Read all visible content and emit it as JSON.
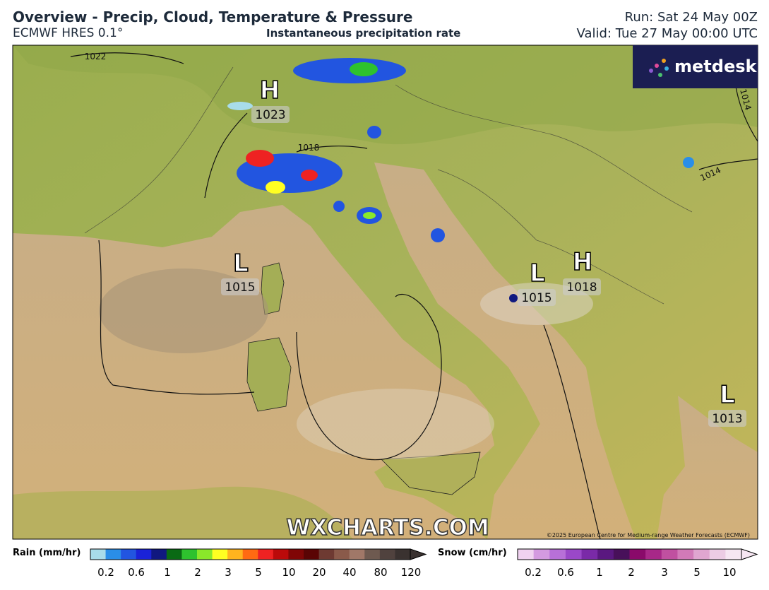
{
  "header": {
    "title": "Overview - Precip, Cloud, Temperature & Pressure",
    "model": "ECMWF HRES 0.1°",
    "subtitle": "Instantaneous precipitation rate",
    "run": "Run: Sat 24 May 00Z",
    "valid": "Valid: Tue 27 May 00:00 UTC"
  },
  "logo": "metdesk",
  "watermark": "WXCHARTS.COM",
  "copyright": "©2025 European Centre for Medium-range Weather Forecasts (ECMWF)",
  "pressure_systems": [
    {
      "symbol": "H",
      "value": 1023
    },
    {
      "symbol": "L",
      "value": 1015
    },
    {
      "symbol": "L",
      "value": 1015
    },
    {
      "symbol": "H",
      "value": 1018
    },
    {
      "symbol": "L",
      "value": 1013
    }
  ],
  "isobar_labels": [
    1022,
    1018,
    1014,
    1014
  ],
  "rain_legend": {
    "title": "Rain (mm/hr)",
    "ticks": [
      0.2,
      0.6,
      1,
      2,
      3,
      5,
      10,
      20,
      40,
      80,
      120
    ],
    "colors": [
      "#a8dcea",
      "#2a8ee8",
      "#2255e0",
      "#1a22d8",
      "#101880",
      "#0a6a14",
      "#2ec22e",
      "#8ae82a",
      "#ffff22",
      "#ffb41e",
      "#ff6a12",
      "#ee2222",
      "#bb0a0a",
      "#800606",
      "#5a0404",
      "#6e3a32",
      "#8a5a4a",
      "#a07868",
      "#6e5a50",
      "#50423e",
      "#3a3230"
    ]
  },
  "snow_legend": {
    "title": "Snow (cm/hr)",
    "ticks": [
      0.2,
      0.6,
      1,
      2,
      3,
      5,
      10
    ],
    "colors": [
      "#f0d2f0",
      "#d49ae0",
      "#b870d8",
      "#9a48c8",
      "#7a2aa8",
      "#5a1880",
      "#48105a",
      "#8a0a6a",
      "#a82888",
      "#c050a0",
      "#d27ab8",
      "#e0a6d0",
      "#eccce4",
      "#f6e6f2"
    ]
  }
}
